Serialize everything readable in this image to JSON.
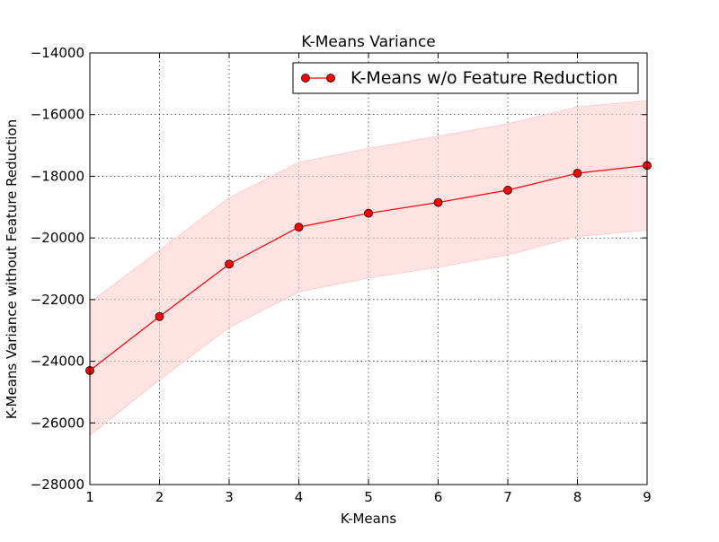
{
  "chart_data": {
    "type": "line",
    "title": "K-Means Variance",
    "xlabel": "K-Means",
    "ylabel": "K-Means Variance without Feature Reduction",
    "xlim": [
      1,
      9
    ],
    "ylim": [
      -28000,
      -14000
    ],
    "x_ticks": [
      1,
      2,
      3,
      4,
      5,
      6,
      7,
      8,
      9
    ],
    "y_ticks": [
      -28000,
      -26000,
      -24000,
      -22000,
      -20000,
      -18000,
      -16000,
      -14000
    ],
    "x_tick_labels": [
      "1",
      "2",
      "3",
      "4",
      "5",
      "6",
      "7",
      "8",
      "9"
    ],
    "y_tick_labels": [
      "−28000",
      "−26000",
      "−24000",
      "−22000",
      "−20000",
      "−18000",
      "−16000",
      "−14000"
    ],
    "grid": true,
    "legend_position": "top-right",
    "series": [
      {
        "name": "K-Means w/o Feature Reduction",
        "color": "#ff0000",
        "marker": "circle",
        "x": [
          1,
          2,
          3,
          4,
          5,
          6,
          7,
          8,
          9
        ],
        "values": [
          -24300,
          -22550,
          -20850,
          -19650,
          -19200,
          -18850,
          -18450,
          -17900,
          -17650
        ],
        "band_upper": [
          -22100,
          -20400,
          -18700,
          -17550,
          -17100,
          -16700,
          -16300,
          -15750,
          -15550
        ],
        "band_lower": [
          -26400,
          -24600,
          -22900,
          -21750,
          -21300,
          -20950,
          -20550,
          -19950,
          -19750
        ],
        "band_color": "#ffcccc"
      }
    ]
  }
}
